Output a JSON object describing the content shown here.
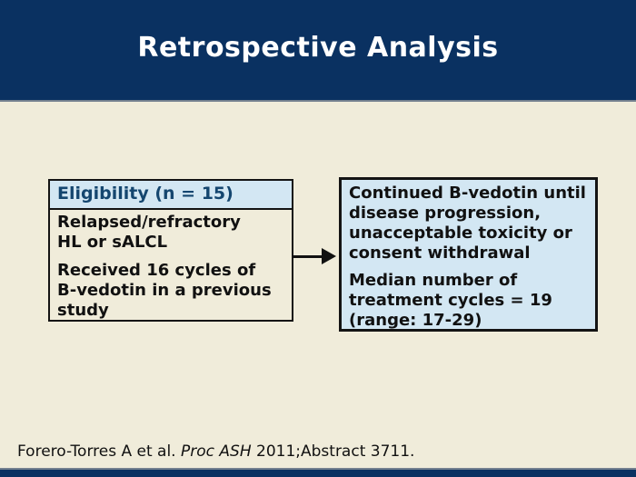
{
  "slide": {
    "title": "Retrospective Analysis",
    "left_box": {
      "header": "Eligibility (n = 15)",
      "items": [
        "Relapsed/refractory\nHL or sALCL",
        "Received 16 cycles of\nB-vedotin in a previous\nstudy"
      ]
    },
    "right_box": {
      "items": [
        "Continued B-vedotin until\ndisease progression,\nunacceptable toxicity or\nconsent withdrawal",
        "Median number of\ntreatment cycles = 19\n(range: 17-29)"
      ]
    },
    "citation": {
      "prefix": "Forero-Torres A et al. ",
      "source_italic": "Proc ASH",
      "suffix": " 2011;Abstract 3711."
    },
    "colors": {
      "banner_navy": "#0a3161",
      "box_light_blue": "#d3e7f3",
      "background_cream": "#f0ecda",
      "separator_gray": "#73808f",
      "header_text_navy": "#14466f",
      "body_text_black": "#111111"
    }
  }
}
